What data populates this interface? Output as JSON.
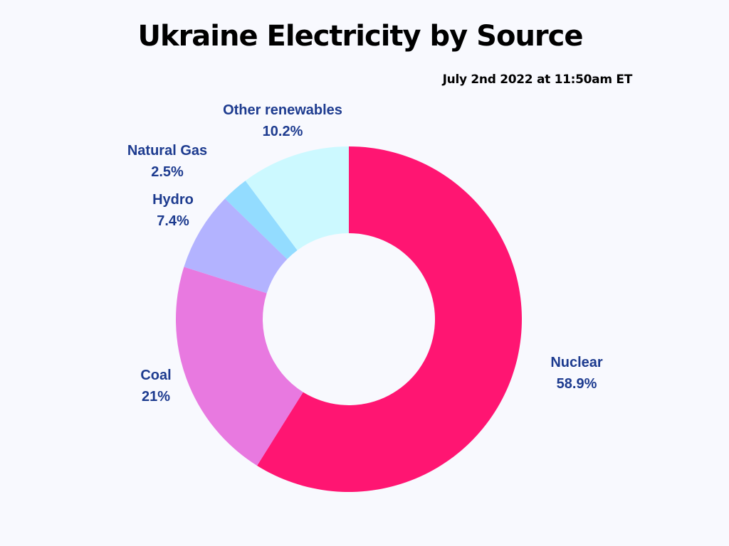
{
  "chart_data": {
    "type": "pie",
    "title": "Ukraine Electricity by Source",
    "subtitle": "July 2nd 2022 at 11:50am ET",
    "donut": true,
    "categories": [
      "Nuclear",
      "Coal",
      "Hydro",
      "Natural Gas",
      "Other renewables"
    ],
    "values": [
      58.9,
      21,
      7.4,
      2.5,
      10.2
    ],
    "value_labels": [
      "58.9%",
      "21%",
      "7.4%",
      "2.5%",
      "10.2%"
    ],
    "colors": [
      "#ff1572",
      "#e879e0",
      "#b3b3ff",
      "#93dcff",
      "#ccf9ff"
    ],
    "label_color": "#1d3b8f",
    "background": "#f8f9fe",
    "legend": "none"
  }
}
